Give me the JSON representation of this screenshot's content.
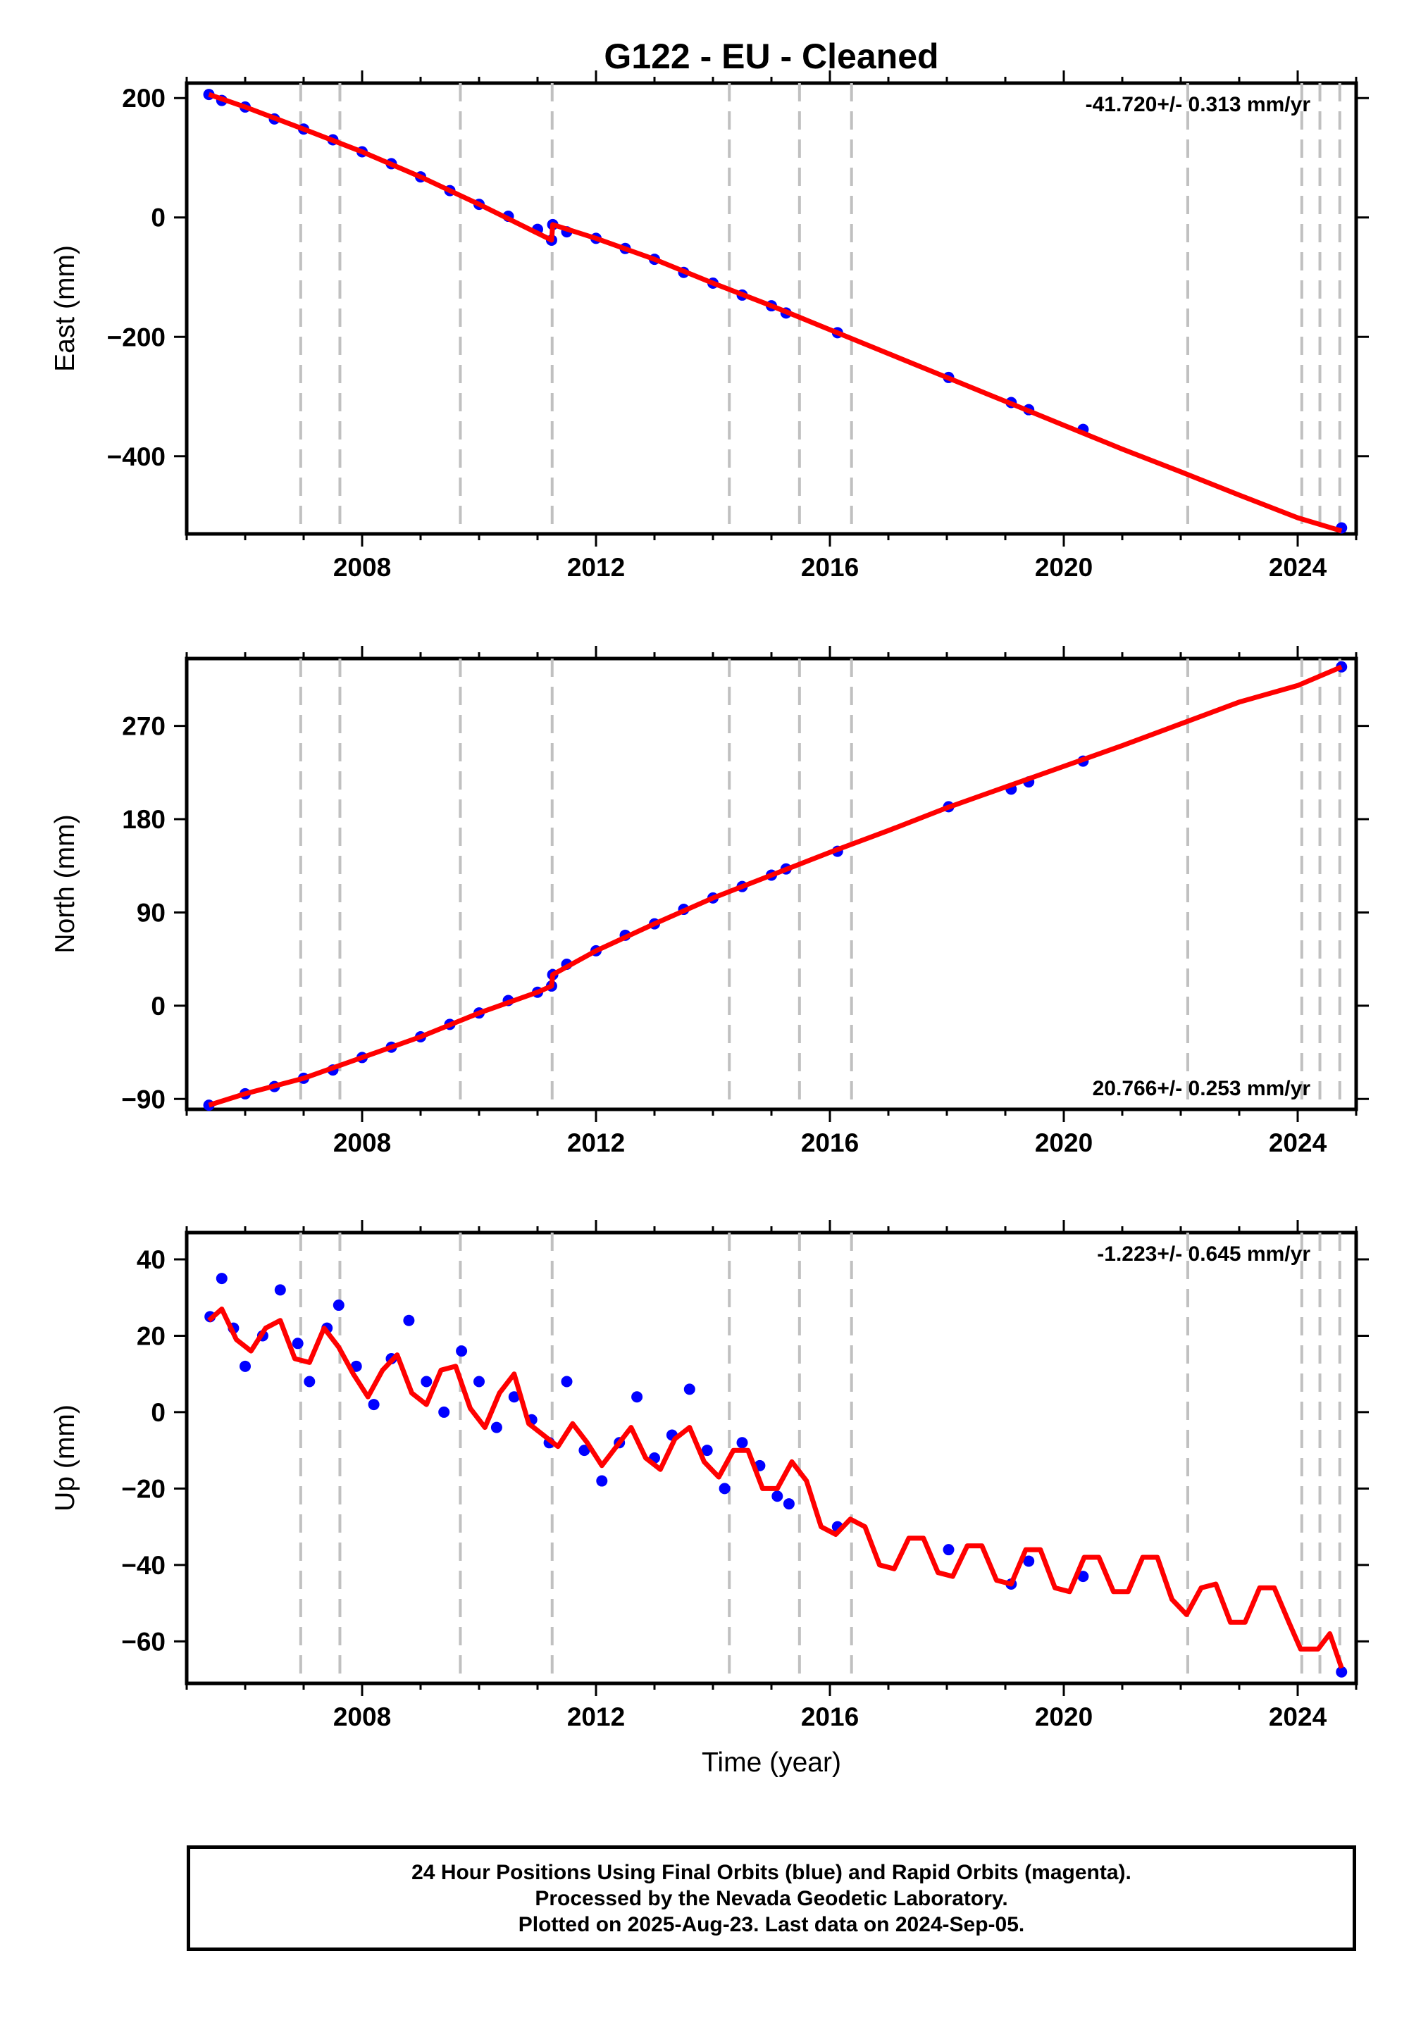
{
  "title": "G122  - EU - Cleaned",
  "colors": {
    "data_points": "#0000ff",
    "model_line": "#ff0000",
    "breaks": "#c0c0c0",
    "frame": "#000000"
  },
  "chart_data": [
    {
      "type": "scatter",
      "ylabel": "East (mm)",
      "xlabel": "",
      "xlim": [
        2005.0,
        2025.0
      ],
      "ylim": [
        -530,
        225
      ],
      "xticks": [
        2008,
        2012,
        2016,
        2020,
        2024
      ],
      "yticks": [
        200,
        0,
        -200,
        -400
      ],
      "rate_label": "-41.720+/- 0.313 mm/yr",
      "rate_label_position": "top-right",
      "break_lines_x": [
        2006.95,
        2007.62,
        2009.68,
        2011.25,
        2014.28,
        2015.48,
        2016.37,
        2022.12,
        2024.07,
        2024.38,
        2024.72
      ],
      "series": [
        {
          "kind": "observations",
          "x": [
            2005.38,
            2005.6,
            2006.0,
            2006.5,
            2007.0,
            2007.5,
            2008.0,
            2008.5,
            2009.0,
            2009.5,
            2010.0,
            2010.5,
            2011.0,
            2011.24,
            2011.26,
            2011.5,
            2012.0,
            2012.5,
            2013.0,
            2013.5,
            2014.0,
            2014.5,
            2015.0,
            2015.25,
            2016.13,
            2018.03,
            2019.1,
            2019.4,
            2020.33,
            2024.75
          ],
          "y": [
            206,
            196,
            185,
            165,
            148,
            130,
            110,
            90,
            68,
            45,
            22,
            2,
            -20,
            -38,
            -12,
            -24,
            -35,
            -52,
            -70,
            -92,
            -110,
            -130,
            -148,
            -160,
            -193,
            -268,
            -310,
            -322,
            -355,
            -520
          ]
        },
        {
          "kind": "model",
          "x": [
            2005.38,
            2006.0,
            2007.0,
            2008.0,
            2009.0,
            2010.0,
            2011.24,
            2011.26,
            2012.0,
            2013.0,
            2014.0,
            2015.0,
            2016.0,
            2017.0,
            2018.0,
            2019.0,
            2020.0,
            2021.0,
            2022.0,
            2023.0,
            2024.0,
            2024.75
          ],
          "y": [
            206,
            185,
            148,
            110,
            68,
            22,
            -38,
            -12,
            -35,
            -70,
            -110,
            -148,
            -188,
            -228,
            -268,
            -308,
            -348,
            -388,
            -426,
            -465,
            -503,
            -525
          ]
        }
      ]
    },
    {
      "type": "scatter",
      "ylabel": "North (mm)",
      "xlabel": "",
      "xlim": [
        2005.0,
        2025.0
      ],
      "ylim": [
        -100,
        335
      ],
      "xticks": [
        2008,
        2012,
        2016,
        2020,
        2024
      ],
      "yticks": [
        270,
        180,
        90,
        0,
        -90
      ],
      "rate_label": "20.766+/- 0.253 mm/yr",
      "rate_label_position": "bottom-right",
      "break_lines_x": [
        2006.95,
        2007.62,
        2009.68,
        2011.25,
        2014.28,
        2015.48,
        2016.37,
        2022.12,
        2024.07,
        2024.38,
        2024.72
      ],
      "series": [
        {
          "kind": "observations",
          "x": [
            2005.38,
            2006.0,
            2006.5,
            2007.0,
            2007.5,
            2008.0,
            2008.5,
            2009.0,
            2009.5,
            2010.0,
            2010.5,
            2011.0,
            2011.24,
            2011.26,
            2011.5,
            2012.0,
            2012.5,
            2013.0,
            2013.5,
            2014.0,
            2014.5,
            2015.0,
            2015.25,
            2016.13,
            2018.03,
            2019.1,
            2019.4,
            2020.33,
            2024.75
          ],
          "y": [
            -96,
            -85,
            -78,
            -70,
            -62,
            -50,
            -40,
            -30,
            -18,
            -7,
            5,
            13,
            19,
            30,
            40,
            53,
            68,
            79,
            93,
            104,
            115,
            126,
            132,
            149,
            192,
            209,
            216,
            236,
            327
          ]
        },
        {
          "kind": "model",
          "x": [
            2005.38,
            2006.0,
            2007.0,
            2008.0,
            2009.0,
            2010.0,
            2011.0,
            2011.24,
            2011.26,
            2012.0,
            2013.0,
            2014.0,
            2015.0,
            2016.0,
            2017.0,
            2018.0,
            2019.0,
            2020.0,
            2021.0,
            2022.0,
            2023.0,
            2024.0,
            2024.75
          ],
          "y": [
            -96,
            -85,
            -70,
            -50,
            -30,
            -7,
            13,
            19,
            30,
            53,
            79,
            104,
            126,
            148,
            169,
            191,
            211,
            231,
            251,
            272,
            293,
            309,
            327
          ]
        }
      ]
    },
    {
      "type": "scatter",
      "ylabel": "Up (mm)",
      "xlabel": "Time (year)",
      "xlim": [
        2005.0,
        2025.0
      ],
      "ylim": [
        -71,
        47
      ],
      "xticks": [
        2008,
        2012,
        2016,
        2020,
        2024
      ],
      "yticks": [
        40,
        20,
        0,
        -20,
        -40,
        -60
      ],
      "rate_label": "-1.223+/- 0.645 mm/yr",
      "rate_label_position": "top-right",
      "break_lines_x": [
        2006.95,
        2007.62,
        2009.68,
        2011.25,
        2014.28,
        2015.48,
        2016.37,
        2022.12,
        2024.07,
        2024.38,
        2024.72
      ],
      "series": [
        {
          "kind": "observations",
          "x": [
            2005.4,
            2005.6,
            2005.8,
            2006.0,
            2006.3,
            2006.6,
            2006.9,
            2007.1,
            2007.4,
            2007.6,
            2007.9,
            2008.2,
            2008.5,
            2008.8,
            2009.1,
            2009.4,
            2009.7,
            2010.0,
            2010.3,
            2010.6,
            2010.9,
            2011.2,
            2011.5,
            2011.8,
            2012.1,
            2012.4,
            2012.7,
            2013.0,
            2013.3,
            2013.6,
            2013.9,
            2014.2,
            2014.5,
            2014.8,
            2015.1,
            2015.3,
            2016.13,
            2018.03,
            2019.1,
            2019.4,
            2020.33,
            2024.75
          ],
          "y": [
            25,
            35,
            22,
            12,
            20,
            32,
            18,
            8,
            22,
            28,
            12,
            2,
            14,
            24,
            8,
            0,
            16,
            8,
            -4,
            4,
            -2,
            -8,
            8,
            -10,
            -18,
            -8,
            4,
            -12,
            -6,
            6,
            -10,
            -20,
            -8,
            -14,
            -22,
            -24,
            -30,
            -36,
            -45,
            -39,
            -43,
            -68
          ]
        },
        {
          "kind": "model",
          "x": [
            2005.38,
            2005.6,
            2005.85,
            2006.1,
            2006.35,
            2006.6,
            2006.85,
            2007.1,
            2007.35,
            2007.6,
            2007.85,
            2008.1,
            2008.35,
            2008.6,
            2008.85,
            2009.1,
            2009.35,
            2009.6,
            2009.85,
            2010.1,
            2010.35,
            2010.6,
            2010.85,
            2011.1,
            2011.35,
            2011.6,
            2011.85,
            2012.1,
            2012.35,
            2012.6,
            2012.85,
            2013.1,
            2013.35,
            2013.6,
            2013.85,
            2014.1,
            2014.35,
            2014.6,
            2014.85,
            2015.1,
            2015.35,
            2015.6,
            2015.85,
            2016.1,
            2016.35,
            2016.6,
            2016.85,
            2017.1,
            2017.35,
            2017.6,
            2017.85,
            2018.1,
            2018.35,
            2018.6,
            2018.85,
            2019.1,
            2019.35,
            2019.6,
            2019.85,
            2020.1,
            2020.35,
            2020.6,
            2020.85,
            2021.1,
            2021.35,
            2021.6,
            2021.85,
            2022.1,
            2022.35,
            2022.6,
            2022.85,
            2023.1,
            2023.35,
            2023.6,
            2023.85,
            2024.05,
            2024.35,
            2024.55,
            2024.75
          ],
          "y": [
            24,
            27,
            19,
            16,
            22,
            24,
            14,
            13,
            22,
            17,
            10,
            4,
            11,
            15,
            5,
            2,
            11,
            12,
            1,
            -4,
            5,
            10,
            -3,
            -6,
            -9,
            -3,
            -8,
            -14,
            -9,
            -4,
            -12,
            -15,
            -7,
            -4,
            -13,
            -17,
            -10,
            -10,
            -20,
            -20,
            -13,
            -18,
            -30,
            -32,
            -28,
            -30,
            -40,
            -41,
            -33,
            -33,
            -42,
            -43,
            -35,
            -35,
            -44,
            -45,
            -36,
            -36,
            -46,
            -47,
            -38,
            -38,
            -47,
            -47,
            -38,
            -38,
            -49,
            -53,
            -46,
            -45,
            -55,
            -55,
            -46,
            -46,
            -55,
            -62,
            -62,
            -58,
            -67
          ]
        }
      ]
    }
  ],
  "footer": {
    "line1": "24 Hour Positions Using Final Orbits (blue) and Rapid Orbits (magenta).",
    "line2": "Processed by the Nevada Geodetic Laboratory.",
    "line3": "Plotted on 2025-Aug-23. Last data on 2024-Sep-05."
  }
}
